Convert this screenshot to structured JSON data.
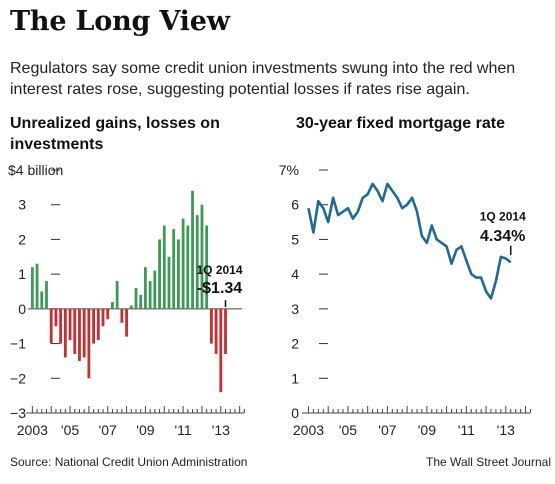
{
  "header": {
    "title": "The Long View",
    "subtitle": "Regulators say some credit union investments swung into the red when interest rates rose, suggesting potential losses if rates rise again."
  },
  "footer": {
    "source": "Source: National Credit Union Administration",
    "credit": "The Wall Street Journal"
  },
  "colors": {
    "positive": "#3d9a56",
    "negative": "#c62f2f",
    "line": "#1d6a99"
  },
  "chart_data": [
    {
      "type": "bar",
      "title": "Unrealized gains, losses on investments",
      "ylabel": "",
      "ylim": [
        -3,
        4
      ],
      "yticks": [
        4,
        3,
        2,
        1,
        0,
        -1,
        -2,
        -3
      ],
      "ytick_labels": [
        "$4 billion",
        "3",
        "2",
        "1",
        "0",
        "−1",
        "−2",
        "−3"
      ],
      "xlabels": [
        {
          "x": 2003,
          "text": "2003"
        },
        {
          "x": 2005,
          "text": "'05"
        },
        {
          "x": 2007,
          "text": "'07"
        },
        {
          "x": 2009,
          "text": "'09"
        },
        {
          "x": 2011,
          "text": "'11"
        },
        {
          "x": 2013,
          "text": "'13"
        }
      ],
      "xlim": [
        2003,
        2014.25
      ],
      "x_start": 2003,
      "quarterly_values": [
        1.2,
        1.3,
        0.5,
        0.8,
        -1.0,
        -0.5,
        -1.0,
        -1.4,
        -0.9,
        -1.3,
        -1.5,
        -1.4,
        -2.0,
        -1.0,
        -0.9,
        -0.5,
        -0.3,
        0.2,
        0.8,
        -0.4,
        -0.8,
        0.1,
        0.6,
        0.4,
        1.2,
        0.8,
        1.1,
        2.0,
        2.4,
        1.5,
        2.3,
        2.0,
        2.6,
        2.4,
        3.4,
        2.7,
        3.0,
        2.4,
        -1.0,
        -1.3,
        -2.4,
        -1.3
      ],
      "annotation": {
        "period": "1Q 2014",
        "value": "-$1.34"
      },
      "grid": false
    },
    {
      "type": "line",
      "title": "30-year fixed mortgage rate",
      "ylim": [
        0,
        7
      ],
      "yticks": [
        7,
        6,
        5,
        4,
        3,
        2,
        1,
        0
      ],
      "ytick_labels": [
        "7%",
        "6",
        "5",
        "4",
        "3",
        "2",
        "1",
        "0"
      ],
      "xlabels": [
        {
          "x": 2003,
          "text": "2003"
        },
        {
          "x": 2005,
          "text": "'05"
        },
        {
          "x": 2007,
          "text": "'07"
        },
        {
          "x": 2009,
          "text": "'09"
        },
        {
          "x": 2011,
          "text": "'11"
        },
        {
          "x": 2013,
          "text": "'13"
        }
      ],
      "xlim": [
        2003,
        2014.25
      ],
      "x_start": 2003,
      "quarterly_values": [
        5.9,
        5.2,
        6.1,
        5.9,
        5.5,
        6.2,
        5.7,
        5.8,
        5.9,
        5.6,
        5.8,
        6.2,
        6.3,
        6.6,
        6.4,
        6.1,
        6.6,
        6.4,
        6.2,
        5.9,
        6.0,
        6.2,
        5.8,
        5.1,
        4.9,
        5.4,
        5.0,
        4.9,
        4.8,
        4.3,
        4.7,
        4.8,
        4.4,
        4.0,
        3.9,
        3.9,
        3.5,
        3.3,
        3.8,
        4.5,
        4.45,
        4.34
      ],
      "annotation": {
        "period": "1Q 2014",
        "value": "4.34%"
      },
      "grid": false
    }
  ]
}
